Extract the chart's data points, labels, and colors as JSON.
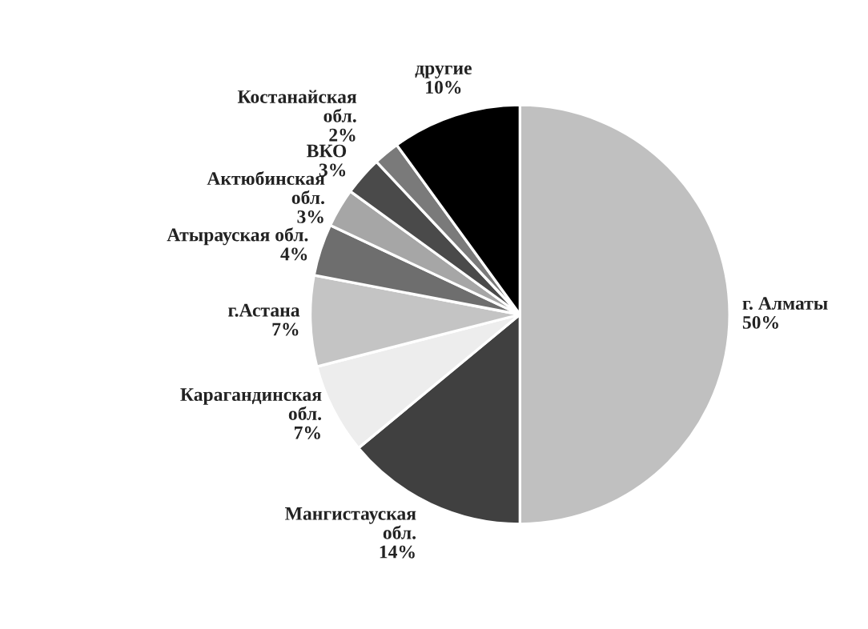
{
  "chart_data": {
    "type": "pie",
    "categories": [
      "г. Алматы",
      "Мангистауская\nобл.",
      "Карагандинская\nобл.",
      "г.Астана",
      "Атырауская обл.",
      "Актюбинская\nобл.",
      "ВКО",
      "Костанайская\nобл.",
      "другие"
    ],
    "values": [
      50,
      14,
      7,
      7,
      4,
      3,
      3,
      2,
      10
    ],
    "colors": [
      "#c0c0c0",
      "#404040",
      "#ededed",
      "#c4c4c4",
      "#6e6e6e",
      "#a6a6a6",
      "#4a4a4a",
      "#7a7a7a",
      "#000000"
    ],
    "value_labels": [
      "50%",
      "14%",
      "7%",
      "7%",
      "4%",
      "3%",
      "3%",
      "2%",
      "10%"
    ],
    "legend": false
  }
}
